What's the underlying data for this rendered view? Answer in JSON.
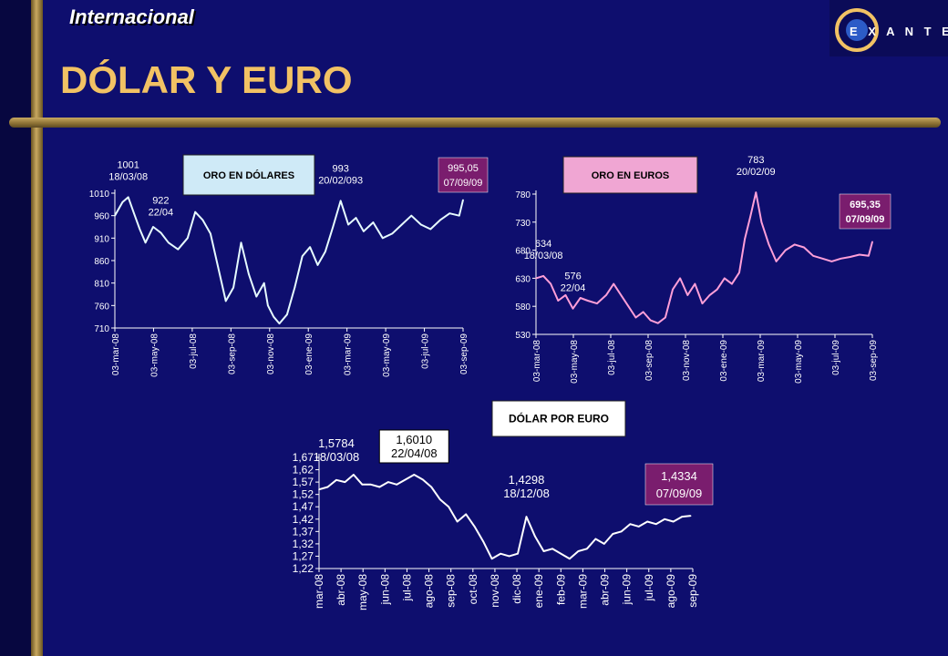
{
  "header": {
    "section": "Internacional",
    "title": "DÓLAR Y EURO",
    "logo_text": "E X A N T E"
  },
  "colors": {
    "background": "#0e0e6e",
    "title": "#f2c264",
    "gold": "#c8a860"
  },
  "chart_data": [
    {
      "type": "line",
      "title": "ORO EN DÓLARES",
      "title_box_color": "#cfeaf7",
      "line_color": "#e6fbff",
      "y_ticks": [
        "1010",
        "960",
        "910",
        "860",
        "810",
        "760",
        "710"
      ],
      "ylim": [
        710,
        1010
      ],
      "x_ticks": [
        "03-mar-08",
        "03-may-08",
        "03-jul-08",
        "03-sep-08",
        "03-nov-08",
        "03-ene-09",
        "03-mar-09",
        "03-may-09",
        "03-jul-09",
        "03-sep-09"
      ],
      "xlim": [
        0,
        18.2
      ],
      "x": [
        0,
        0.4,
        0.7,
        1.0,
        1.3,
        1.6,
        2.0,
        2.4,
        2.8,
        3.3,
        3.8,
        4.2,
        4.6,
        5.0,
        5.4,
        5.8,
        6.2,
        6.6,
        7.0,
        7.4,
        7.8,
        8.0,
        8.3,
        8.6,
        9.0,
        9.4,
        9.8,
        10.2,
        10.6,
        11.0,
        11.4,
        11.8,
        12.2,
        12.6,
        13.0,
        13.5,
        14.0,
        14.5,
        15.0,
        15.5,
        16.0,
        16.5,
        17.0,
        17.5,
        18.0,
        18.2
      ],
      "values": [
        960,
        990,
        1001,
        965,
        930,
        900,
        935,
        922,
        900,
        885,
        910,
        968,
        950,
        920,
        845,
        770,
        800,
        900,
        830,
        780,
        810,
        760,
        735,
        720,
        740,
        800,
        870,
        890,
        850,
        880,
        935,
        993,
        940,
        955,
        925,
        945,
        910,
        920,
        940,
        960,
        940,
        930,
        950,
        965,
        960,
        995
      ],
      "annotations": [
        {
          "text": [
            "1001",
            "18/03/08"
          ],
          "x": 0.7,
          "y": 1001
        },
        {
          "text": [
            "922",
            "22/04"
          ],
          "x": 2.4,
          "y": 922
        },
        {
          "text": [
            "993",
            "20/02/093"
          ],
          "x": 11.8,
          "y": 993
        }
      ],
      "current": {
        "text": [
          "995,05",
          "07/09/09"
        ],
        "box_color": "#7a1d6e"
      }
    },
    {
      "type": "line",
      "title": "ORO EN EUROS",
      "title_box_color": "#f0a6d3",
      "line_color": "#ff9fd8",
      "y_ticks": [
        "780",
        "730",
        "680",
        "630",
        "580",
        "530"
      ],
      "ylim": [
        530,
        780
      ],
      "x_ticks": [
        "03-mar-08",
        "03-may-08",
        "03-jul-08",
        "03-sep-08",
        "03-nov-08",
        "03-ene-09",
        "03-mar-09",
        "03-may-09",
        "03-jul-09",
        "03-sep-09"
      ],
      "xlim": [
        0,
        18.2
      ],
      "x": [
        0,
        0.4,
        0.8,
        1.2,
        1.6,
        2.0,
        2.4,
        2.8,
        3.3,
        3.8,
        4.2,
        4.6,
        5.0,
        5.4,
        5.8,
        6.2,
        6.6,
        7.0,
        7.4,
        7.8,
        8.2,
        8.6,
        9.0,
        9.4,
        9.8,
        10.2,
        10.6,
        11.0,
        11.3,
        11.6,
        11.9,
        12.2,
        12.6,
        13.0,
        13.5,
        14.0,
        14.5,
        15.0,
        15.5,
        16.0,
        16.5,
        17.0,
        17.5,
        18.0,
        18.2
      ],
      "values": [
        630,
        634,
        620,
        590,
        600,
        576,
        595,
        590,
        585,
        600,
        620,
        600,
        580,
        560,
        570,
        555,
        550,
        560,
        610,
        630,
        600,
        620,
        585,
        600,
        610,
        630,
        620,
        640,
        700,
        740,
        783,
        730,
        690,
        660,
        680,
        690,
        685,
        670,
        665,
        660,
        665,
        668,
        672,
        670,
        695
      ],
      "annotations": [
        {
          "text": [
            "634",
            "18/03/08"
          ],
          "x": 0.4,
          "y": 634
        },
        {
          "text": [
            "576",
            "22/04"
          ],
          "x": 2.0,
          "y": 576
        },
        {
          "text": [
            "783",
            "20/02/09"
          ],
          "x": 11.9,
          "y": 783
        }
      ],
      "current": {
        "text": [
          "695,35",
          "07/09/09"
        ],
        "box_color": "#7a1d6e"
      }
    },
    {
      "type": "line",
      "title": "DÓLAR POR EURO",
      "title_box_color": "#ffffff",
      "line_color": "#ffffff",
      "y_ticks": [
        "1,67",
        "1,62",
        "1,57",
        "1,52",
        "1,47",
        "1,42",
        "1,37",
        "1,32",
        "1,27",
        "1,22"
      ],
      "ylim": [
        1.22,
        1.67
      ],
      "x_ticks": [
        "mar-08",
        "abr-08",
        "may-08",
        "jun-08",
        "jul-08",
        "ago-08",
        "sep-08",
        "oct-08",
        "nov-08",
        "dic-08",
        "ene-09",
        "feb-09",
        "mar-09",
        "abr-09",
        "jun-09",
        "jul-09",
        "ago-09",
        "sep-09"
      ],
      "xlim": [
        0,
        17.3
      ],
      "x": [
        0,
        0.4,
        0.8,
        1.2,
        1.6,
        2.0,
        2.4,
        2.8,
        3.2,
        3.6,
        4.0,
        4.4,
        4.8,
        5.2,
        5.6,
        6.0,
        6.4,
        6.8,
        7.2,
        7.6,
        8.0,
        8.4,
        8.8,
        9.2,
        9.6,
        10.0,
        10.4,
        10.8,
        11.2,
        11.6,
        12.0,
        12.4,
        12.8,
        13.2,
        13.6,
        14.0,
        14.4,
        14.8,
        15.2,
        15.6,
        16.0,
        16.4,
        16.8,
        17.2
      ],
      "values": [
        1.54,
        1.55,
        1.5784,
        1.57,
        1.6,
        1.56,
        1.56,
        1.55,
        1.57,
        1.56,
        1.58,
        1.6,
        1.58,
        1.55,
        1.5,
        1.47,
        1.41,
        1.44,
        1.39,
        1.33,
        1.26,
        1.28,
        1.27,
        1.28,
        1.4298,
        1.35,
        1.29,
        1.3,
        1.28,
        1.26,
        1.29,
        1.3,
        1.34,
        1.32,
        1.36,
        1.37,
        1.4,
        1.39,
        1.41,
        1.4,
        1.42,
        1.41,
        1.43,
        1.4334
      ],
      "annotations": [
        {
          "text": [
            "1,5784",
            "18/03/08"
          ],
          "x": 0.8,
          "y": 1.5784,
          "boxed": false
        },
        {
          "text": [
            "1,6010",
            "22/04/08"
          ],
          "x": 4.4,
          "y": 1.6,
          "boxed": true
        },
        {
          "text": [
            "1,4298",
            "18/12/08"
          ],
          "x": 9.6,
          "y": 1.4298,
          "boxed": false
        }
      ],
      "current": {
        "text": [
          "1,4334",
          "07/09/09"
        ],
        "box_color": "#7a1d6e"
      }
    }
  ]
}
